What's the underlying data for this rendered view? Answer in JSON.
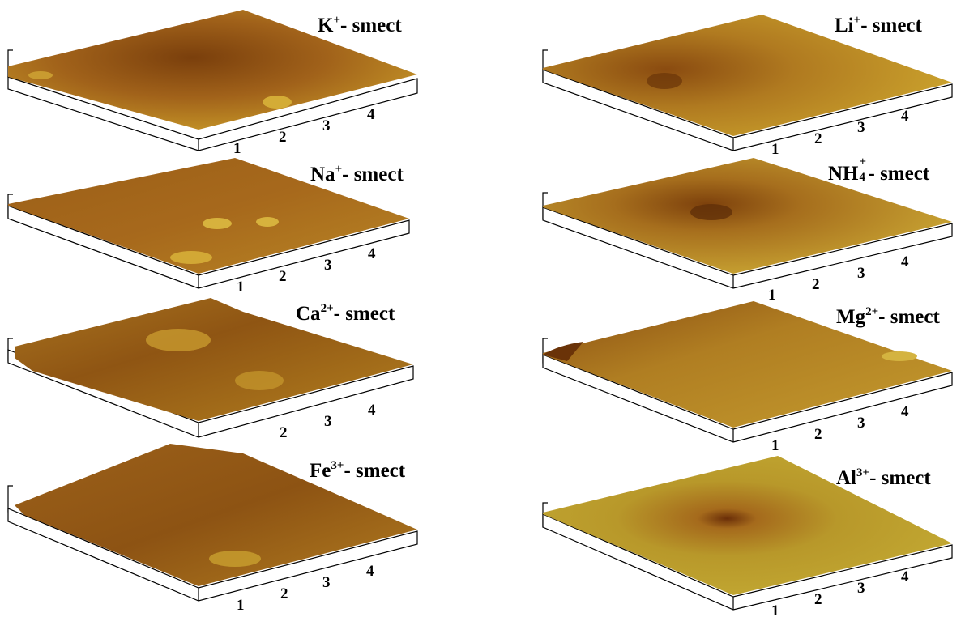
{
  "panels": [
    {
      "id": "k",
      "ion": "K",
      "charge": "+",
      "suffix": "- smect",
      "ticks": [
        "1",
        "2",
        "3",
        "4"
      ]
    },
    {
      "id": "li",
      "ion": "Li",
      "charge": "+",
      "suffix": "- smect",
      "ticks": [
        "1",
        "2",
        "3",
        "4"
      ]
    },
    {
      "id": "na",
      "ion": "Na",
      "charge": "+",
      "suffix": "- smect",
      "ticks": [
        "1",
        "2",
        "3",
        "4"
      ]
    },
    {
      "id": "nh4",
      "ion": "NH",
      "charge": "+",
      "subscript": "4",
      "suffix": "- smect",
      "ticks": [
        "1",
        "2",
        "3",
        "4"
      ]
    },
    {
      "id": "ca",
      "ion": "Ca",
      "charge": "2+",
      "suffix": "- smect",
      "ticks": [
        "2",
        "3",
        "4"
      ]
    },
    {
      "id": "mg",
      "ion": "Mg",
      "charge": "2+",
      "suffix": "- smect",
      "ticks": [
        "1",
        "2",
        "3",
        "4"
      ]
    },
    {
      "id": "fe",
      "ion": "Fe",
      "charge": "3+",
      "suffix": "- smect",
      "ticks": [
        "1",
        "2",
        "3",
        "4"
      ]
    },
    {
      "id": "al",
      "ion": "Al",
      "charge": "3+",
      "suffix": "- smect",
      "ticks": [
        "1",
        "2",
        "3",
        "4"
      ]
    }
  ],
  "colors": {
    "surface_dark": "#6e3a0a",
    "surface_mid": "#a3661a",
    "surface_light": "#c9a127",
    "surface_highlight": "#e2c64a",
    "al_surface": "#b89a22",
    "base_line": "#000000"
  }
}
